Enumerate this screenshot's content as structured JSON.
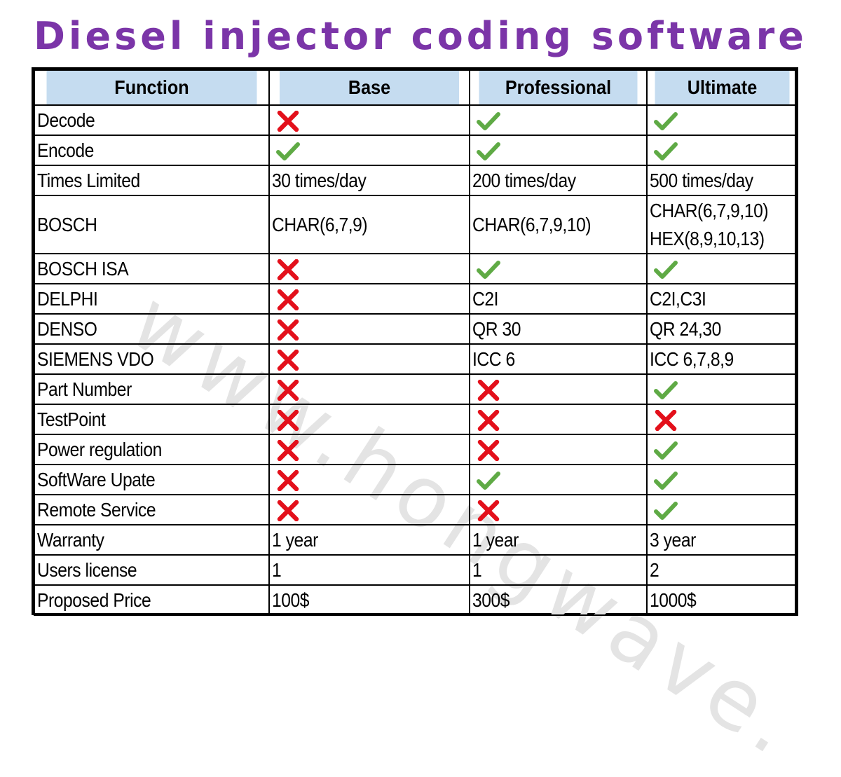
{
  "title": "Diesel injector coding software",
  "watermark": "www.hongwave.",
  "colors": {
    "title": "#7b35a8",
    "header_bg": "#c5dcf0",
    "check": "#5faa45",
    "cross": "#e3101b"
  },
  "table": {
    "headers": [
      "Function",
      "Base",
      "Professional",
      "Ultimate"
    ],
    "rows": [
      {
        "function": "Decode",
        "cells": [
          {
            "icon": "cross"
          },
          {
            "icon": "check"
          },
          {
            "icon": "check"
          }
        ]
      },
      {
        "function": "Encode",
        "cells": [
          {
            "icon": "check"
          },
          {
            "icon": "check"
          },
          {
            "icon": "check"
          }
        ]
      },
      {
        "function": "Times Limited",
        "cells": [
          {
            "text": "30 times/day"
          },
          {
            "text": "200 times/day"
          },
          {
            "text": "500 times/day"
          }
        ]
      },
      {
        "function": "BOSCH",
        "tall": true,
        "cells": [
          {
            "text": "CHAR(6,7,9)"
          },
          {
            "text": "CHAR(6,7,9,10)"
          },
          {
            "lines": [
              "CHAR(6,7,9,10)",
              "HEX(8,9,10,13)"
            ]
          }
        ]
      },
      {
        "function": "BOSCH ISA",
        "cells": [
          {
            "icon": "cross"
          },
          {
            "icon": "check"
          },
          {
            "icon": "check"
          }
        ]
      },
      {
        "function": "DELPHI",
        "cells": [
          {
            "icon": "cross"
          },
          {
            "text": "C2I"
          },
          {
            "text": "C2I,C3I"
          }
        ]
      },
      {
        "function": "DENSO",
        "cells": [
          {
            "icon": "cross"
          },
          {
            "text": "QR 30"
          },
          {
            "text": "QR 24,30"
          }
        ]
      },
      {
        "function": "SIEMENS VDO",
        "cells": [
          {
            "icon": "cross"
          },
          {
            "text": "ICC 6"
          },
          {
            "text": "ICC 6,7,8,9"
          }
        ]
      },
      {
        "function": "Part Number",
        "cells": [
          {
            "icon": "cross"
          },
          {
            "icon": "cross"
          },
          {
            "icon": "check"
          }
        ]
      },
      {
        "function": "TestPoint",
        "cells": [
          {
            "icon": "cross"
          },
          {
            "icon": "cross"
          },
          {
            "icon": "cross"
          }
        ]
      },
      {
        "function": "Power regulation",
        "cells": [
          {
            "icon": "cross"
          },
          {
            "icon": "cross"
          },
          {
            "icon": "check"
          }
        ]
      },
      {
        "function": "SoftWare Upate",
        "cells": [
          {
            "icon": "cross"
          },
          {
            "icon": "check"
          },
          {
            "icon": "check"
          }
        ]
      },
      {
        "function": "Remote Service",
        "cells": [
          {
            "icon": "cross"
          },
          {
            "icon": "cross"
          },
          {
            "icon": "check"
          }
        ]
      },
      {
        "function": "Warranty",
        "cells": [
          {
            "text": "1 year"
          },
          {
            "text": "1 year"
          },
          {
            "text": "3 year"
          }
        ]
      },
      {
        "function": "Users license",
        "cells": [
          {
            "text": "1"
          },
          {
            "text": "1"
          },
          {
            "text": "2"
          }
        ]
      },
      {
        "function": "Proposed Price",
        "cells": [
          {
            "text": "100$"
          },
          {
            "text": "300$"
          },
          {
            "text": "1000$"
          }
        ]
      }
    ]
  }
}
